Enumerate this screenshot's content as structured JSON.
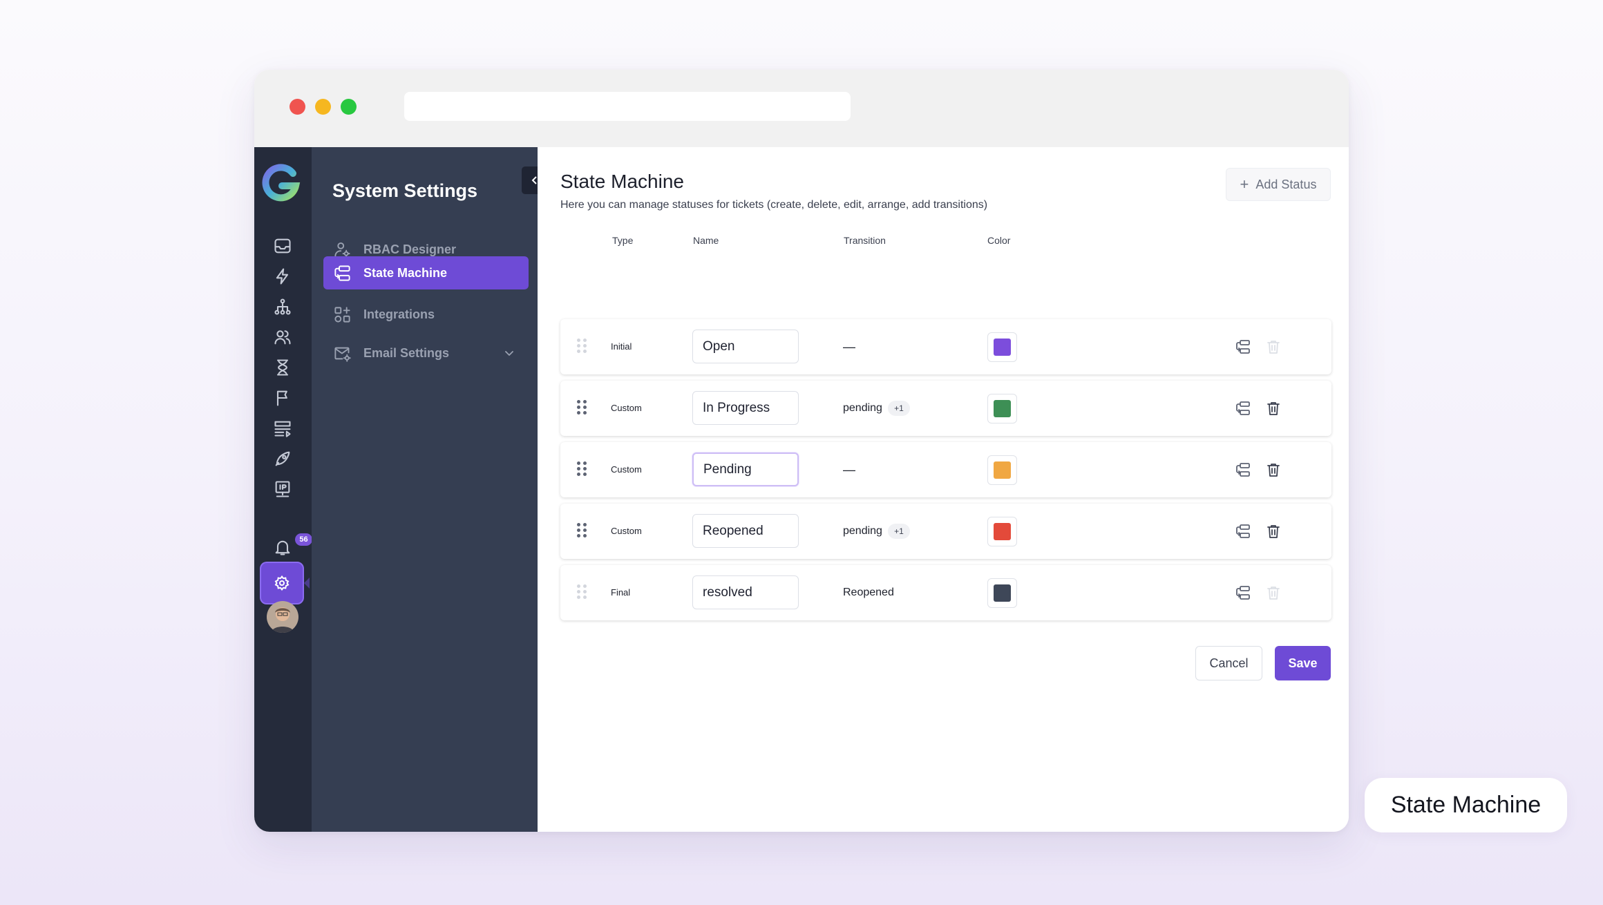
{
  "app": {
    "sidebar_title": "System Settings",
    "notification_count": "56"
  },
  "nav": {
    "items": [
      {
        "label": "RBAC Designer",
        "icon": "user-gear-icon",
        "active": false
      },
      {
        "label": "State Machine",
        "icon": "workflow-icon",
        "active": true
      },
      {
        "label": "Integrations",
        "icon": "apps-plus-icon",
        "active": false
      },
      {
        "label": "Email Settings",
        "icon": "mail-gear-icon",
        "active": false,
        "expandable": true
      }
    ]
  },
  "rail": {
    "icons": [
      "inbox-icon",
      "lightning-icon",
      "hierarchy-icon",
      "users-icon",
      "hourglass-icon",
      "flag-icon",
      "table-icon",
      "rocket-icon",
      "ip-monitor-icon",
      "bell-icon",
      "settings-icon",
      "avatar"
    ]
  },
  "page": {
    "title": "State Machine",
    "description": "Here you can manage statuses for tickets (create, delete, edit, arrange, add transitions)",
    "add_button": "Add Status"
  },
  "table": {
    "headers": {
      "type": "Type",
      "name": "Name",
      "transition": "Transition",
      "color": "Color"
    },
    "rows": [
      {
        "type": "Initial",
        "name": "Open",
        "transition": "—",
        "extra": "",
        "color": "#7c4ddc",
        "deletable": false,
        "draggable": false
      },
      {
        "type": "Custom",
        "name": "In Progress",
        "transition": "pending",
        "extra": "+1",
        "color": "#3d8f55",
        "deletable": true,
        "draggable": true
      },
      {
        "type": "Custom",
        "name": "Pending",
        "transition": "—",
        "extra": "",
        "color": "#f0a742",
        "deletable": true,
        "draggable": true,
        "focused": true
      },
      {
        "type": "Custom",
        "name": "Reopened",
        "transition": "pending",
        "extra": "+1",
        "color": "#e34a3a",
        "deletable": true,
        "draggable": true
      },
      {
        "type": "Final",
        "name": "resolved",
        "transition": "Reopened",
        "extra": "",
        "color": "#3e4758",
        "deletable": false,
        "draggable": false
      }
    ]
  },
  "actions": {
    "cancel": "Cancel",
    "save": "Save"
  },
  "caption": "State Machine",
  "colors": {
    "accent": "#6e4bd6",
    "rail_bg": "#252b3b",
    "sidebar_bg": "#353e52"
  }
}
